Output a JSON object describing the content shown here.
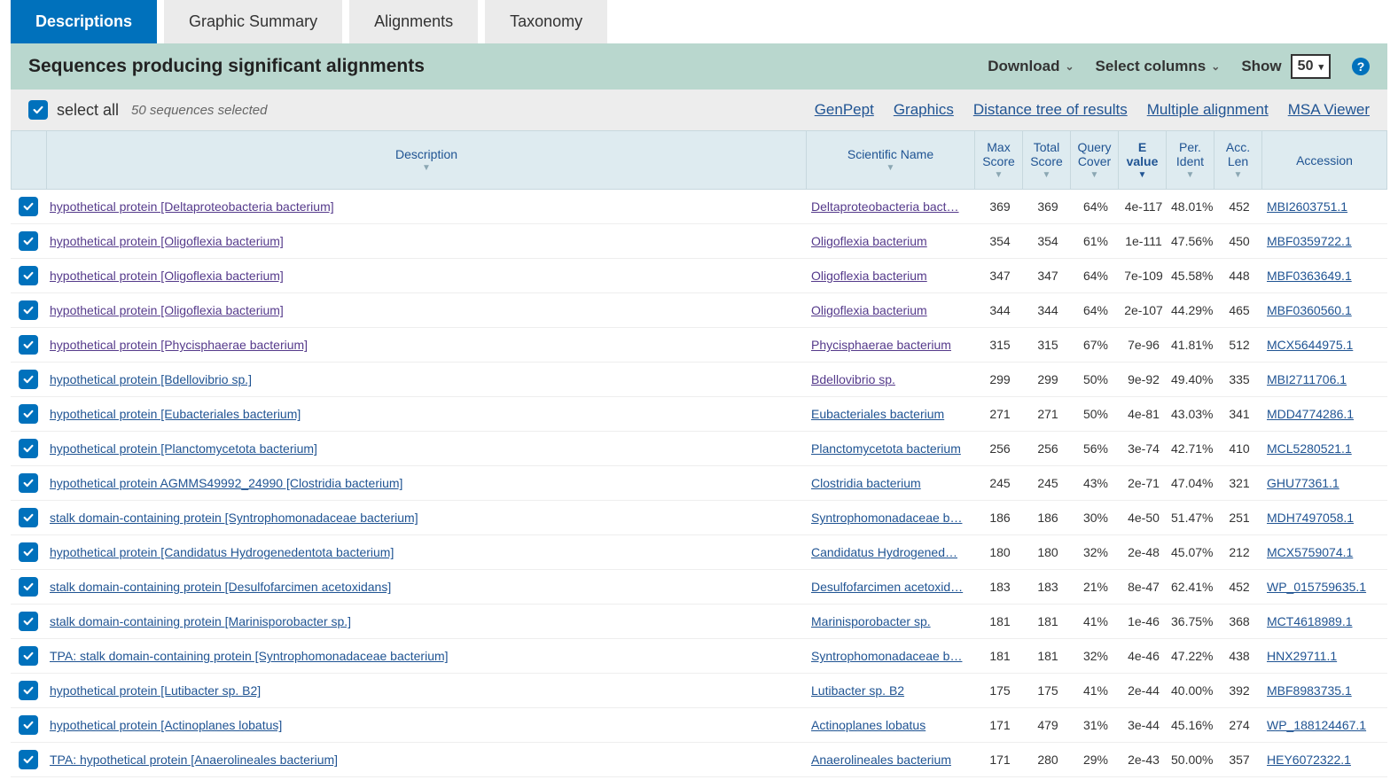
{
  "tabs": {
    "descriptions": "Descriptions",
    "graphic_summary": "Graphic Summary",
    "alignments": "Alignments",
    "taxonomy": "Taxonomy"
  },
  "header": {
    "title": "Sequences producing significant alignments",
    "download": "Download",
    "select_columns": "Select columns",
    "show_label": "Show",
    "show_value": "50"
  },
  "toolbar": {
    "select_all": "select all",
    "selected_count": "50 sequences selected",
    "links": {
      "genpept": "GenPept",
      "graphics": "Graphics",
      "distance_tree": "Distance tree of results",
      "multiple_alignment": "Multiple alignment",
      "msa_viewer": "MSA Viewer"
    }
  },
  "columns": {
    "description": "Description",
    "scientific_name": "Scientific Name",
    "max_score": "Max Score",
    "total_score": "Total Score",
    "query_cover": "Query Cover",
    "e_value": "E value",
    "per_ident": "Per. Ident",
    "acc_len": "Acc. Len",
    "accession": "Accession"
  },
  "rows": [
    {
      "desc": "hypothetical protein [Deltaproteobacteria bacterium]",
      "sci": "Deltaproteobacteria bact…",
      "max": "369",
      "total": "369",
      "cover": "64%",
      "e": "4e-117",
      "ident": "48.01%",
      "len": "452",
      "acc": "MBI2603751.1",
      "visited": true,
      "sci_visited": true
    },
    {
      "desc": "hypothetical protein [Oligoflexia bacterium]",
      "sci": "Oligoflexia bacterium",
      "max": "354",
      "total": "354",
      "cover": "61%",
      "e": "1e-111",
      "ident": "47.56%",
      "len": "450",
      "acc": "MBF0359722.1",
      "visited": true,
      "sci_visited": true
    },
    {
      "desc": "hypothetical protein [Oligoflexia bacterium]",
      "sci": "Oligoflexia bacterium",
      "max": "347",
      "total": "347",
      "cover": "64%",
      "e": "7e-109",
      "ident": "45.58%",
      "len": "448",
      "acc": "MBF0363649.1",
      "visited": true,
      "sci_visited": true
    },
    {
      "desc": "hypothetical protein [Oligoflexia bacterium]",
      "sci": "Oligoflexia bacterium",
      "max": "344",
      "total": "344",
      "cover": "64%",
      "e": "2e-107",
      "ident": "44.29%",
      "len": "465",
      "acc": "MBF0360560.1",
      "visited": true,
      "sci_visited": true
    },
    {
      "desc": "hypothetical protein [Phycisphaerae bacterium]",
      "sci": "Phycisphaerae bacterium",
      "max": "315",
      "total": "315",
      "cover": "67%",
      "e": "7e-96",
      "ident": "41.81%",
      "len": "512",
      "acc": "MCX5644975.1",
      "visited": true,
      "sci_visited": true
    },
    {
      "desc": "hypothetical protein [Bdellovibrio sp.]",
      "sci": "Bdellovibrio sp.",
      "max": "299",
      "total": "299",
      "cover": "50%",
      "e": "9e-92",
      "ident": "49.40%",
      "len": "335",
      "acc": "MBI2711706.1",
      "visited": false,
      "sci_visited": true
    },
    {
      "desc": "hypothetical protein [Eubacteriales bacterium]",
      "sci": "Eubacteriales bacterium",
      "max": "271",
      "total": "271",
      "cover": "50%",
      "e": "4e-81",
      "ident": "43.03%",
      "len": "341",
      "acc": "MDD4774286.1",
      "visited": false,
      "sci_visited": false
    },
    {
      "desc": "hypothetical protein [Planctomycetota bacterium]",
      "sci": "Planctomycetota bacterium",
      "max": "256",
      "total": "256",
      "cover": "56%",
      "e": "3e-74",
      "ident": "42.71%",
      "len": "410",
      "acc": "MCL5280521.1",
      "visited": false,
      "sci_visited": false
    },
    {
      "desc": "hypothetical protein AGMMS49992_24990 [Clostridia bacterium]",
      "sci": "Clostridia bacterium",
      "max": "245",
      "total": "245",
      "cover": "43%",
      "e": "2e-71",
      "ident": "47.04%",
      "len": "321",
      "acc": "GHU77361.1",
      "visited": false,
      "sci_visited": false
    },
    {
      "desc": "stalk domain-containing protein [Syntrophomonadaceae bacterium]",
      "sci": "Syntrophomonadaceae b…",
      "max": "186",
      "total": "186",
      "cover": "30%",
      "e": "4e-50",
      "ident": "51.47%",
      "len": "251",
      "acc": "MDH7497058.1",
      "visited": false,
      "sci_visited": false
    },
    {
      "desc": "hypothetical protein [Candidatus Hydrogenedentota bacterium]",
      "sci": "Candidatus Hydrogened…",
      "max": "180",
      "total": "180",
      "cover": "32%",
      "e": "2e-48",
      "ident": "45.07%",
      "len": "212",
      "acc": "MCX5759074.1",
      "visited": false,
      "sci_visited": false
    },
    {
      "desc": "stalk domain-containing protein [Desulfofarcimen acetoxidans]",
      "sci": "Desulfofarcimen acetoxid…",
      "max": "183",
      "total": "183",
      "cover": "21%",
      "e": "8e-47",
      "ident": "62.41%",
      "len": "452",
      "acc": "WP_015759635.1",
      "visited": false,
      "sci_visited": false
    },
    {
      "desc": "stalk domain-containing protein [Marinisporobacter sp.]",
      "sci": "Marinisporobacter sp.",
      "max": "181",
      "total": "181",
      "cover": "41%",
      "e": "1e-46",
      "ident": "36.75%",
      "len": "368",
      "acc": "MCT4618989.1",
      "visited": false,
      "sci_visited": false
    },
    {
      "desc": "TPA: stalk domain-containing protein [Syntrophomonadaceae bacterium]",
      "sci": "Syntrophomonadaceae b…",
      "max": "181",
      "total": "181",
      "cover": "32%",
      "e": "4e-46",
      "ident": "47.22%",
      "len": "438",
      "acc": "HNX29711.1",
      "visited": false,
      "sci_visited": false
    },
    {
      "desc": "hypothetical protein [Lutibacter sp. B2]",
      "sci": "Lutibacter sp. B2",
      "max": "175",
      "total": "175",
      "cover": "41%",
      "e": "2e-44",
      "ident": "40.00%",
      "len": "392",
      "acc": "MBF8983735.1",
      "visited": false,
      "sci_visited": false
    },
    {
      "desc": "hypothetical protein [Actinoplanes lobatus]",
      "sci": "Actinoplanes lobatus",
      "max": "171",
      "total": "479",
      "cover": "31%",
      "e": "3e-44",
      "ident": "45.16%",
      "len": "274",
      "acc": "WP_188124467.1",
      "visited": false,
      "sci_visited": false
    },
    {
      "desc": "TPA: hypothetical protein [Anaerolineales bacterium]",
      "sci": "Anaerolineales bacterium",
      "max": "171",
      "total": "280",
      "cover": "29%",
      "e": "2e-43",
      "ident": "50.00%",
      "len": "357",
      "acc": "HEY6072322.1",
      "visited": false,
      "sci_visited": false
    }
  ],
  "colors": {
    "tab_active_bg": "#0071bc",
    "tab_inactive_bg": "#ebebeb",
    "header_bg": "#b9d7ce",
    "link": "#205493",
    "link_visited": "#553a8b",
    "thead_bg": "#deebf0"
  }
}
